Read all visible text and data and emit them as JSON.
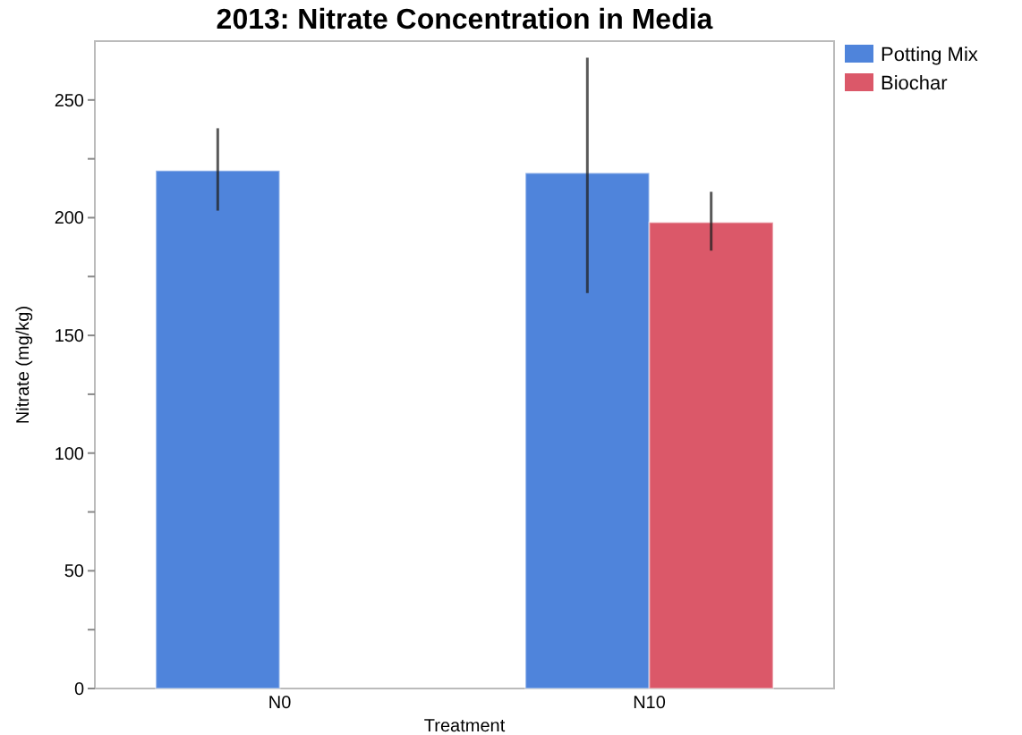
{
  "chart_data": {
    "type": "bar",
    "title": "2013: Nitrate Concentration in Media",
    "xlabel": "Treatment",
    "ylabel": "Nitrate (mg/kg)",
    "categories": [
      "N0",
      "N10"
    ],
    "series": [
      {
        "name": "Potting Mix",
        "color": "#4f84db",
        "values": [
          220,
          219
        ],
        "errors": [
          [
            203,
            238
          ],
          [
            168,
            268
          ]
        ]
      },
      {
        "name": "Biochar",
        "color": "#db5869",
        "values": [
          null,
          198
        ],
        "errors": [
          null,
          [
            186,
            211
          ]
        ]
      }
    ],
    "ylim": [
      0,
      275
    ],
    "yticks": [
      0,
      {
        "value": 25,
        "label": null
      },
      50,
      {
        "value": 75,
        "label": null
      },
      100,
      {
        "value": 125,
        "label": null
      },
      150,
      {
        "value": 175,
        "label": null
      },
      200,
      {
        "value": 225,
        "label": null
      },
      250
    ],
    "grid": false,
    "legend": "top right"
  }
}
